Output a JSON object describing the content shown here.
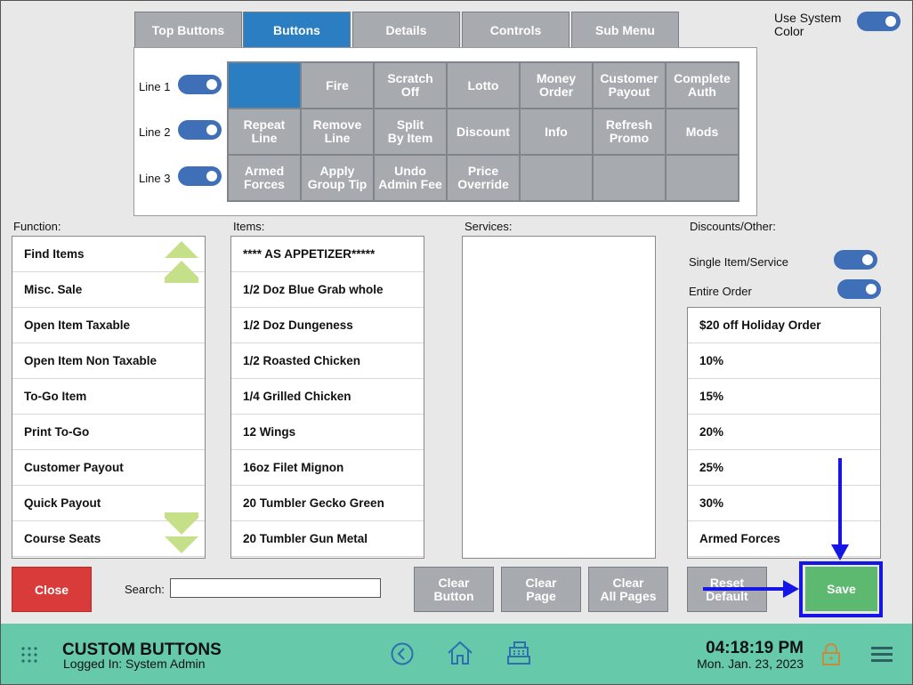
{
  "tabs": [
    {
      "label": "Top Buttons",
      "active": false
    },
    {
      "label": "Buttons",
      "active": true
    },
    {
      "label": "Details",
      "active": false
    },
    {
      "label": "Controls",
      "active": false
    },
    {
      "label": "Sub Menu",
      "active": false
    }
  ],
  "system_color": {
    "label": "Use System Color",
    "on": true
  },
  "lines": [
    {
      "label": "Line 1",
      "on": true
    },
    {
      "label": "Line 2",
      "on": true
    },
    {
      "label": "Line 3",
      "on": true
    }
  ],
  "grid_buttons": [
    {
      "label": "",
      "selected": true
    },
    {
      "label": "Fire"
    },
    {
      "label": "Scratch\nOff"
    },
    {
      "label": "Lotto"
    },
    {
      "label": "Money\nOrder"
    },
    {
      "label": "Customer\nPayout"
    },
    {
      "label": "Complete\nAuth"
    },
    {
      "label": "Repeat\nLine"
    },
    {
      "label": "Remove\nLine"
    },
    {
      "label": "Split\nBy Item"
    },
    {
      "label": "Discount"
    },
    {
      "label": "Info"
    },
    {
      "label": "Refresh\nPromo"
    },
    {
      "label": "Mods"
    },
    {
      "label": "Armed\nForces"
    },
    {
      "label": "Apply\nGroup Tip"
    },
    {
      "label": "Undo\nAdmin Fee"
    },
    {
      "label": "Price\nOverride"
    },
    {
      "label": ""
    },
    {
      "label": ""
    },
    {
      "label": ""
    }
  ],
  "function": {
    "label": "Function:",
    "items": [
      "Find Items",
      "Misc. Sale",
      "Open Item Taxable",
      "Open Item Non Taxable",
      "To-Go Item",
      "Print To-Go",
      "Customer Payout",
      "Quick Payout",
      "Course Seats"
    ]
  },
  "items": {
    "label": "Items:",
    "items": [
      "**** AS APPETIZER*****",
      "1/2 Doz Blue Grab whole",
      "1/2 Doz Dungeness",
      "1/2 Roasted Chicken",
      "1/4 Grilled Chicken",
      "12 Wings",
      "16oz Filet Mignon",
      "20 Tumbler Gecko Green",
      "20 Tumbler Gun Metal"
    ]
  },
  "services": {
    "label": "Services:",
    "items": []
  },
  "discounts": {
    "label": "Discounts/Other:",
    "single_item_label": "Single Item/Service",
    "entire_order_label": "Entire Order",
    "items": [
      "$20 off Holiday Order",
      "10%",
      "15%",
      "20%",
      "25%",
      "30%",
      "Armed Forces"
    ]
  },
  "actions": {
    "close": "Close",
    "search_label": "Search:",
    "search_value": "",
    "clear_button": "Clear\nButton",
    "clear_page": "Clear\nPage",
    "clear_all_pages": "Clear\nAll Pages",
    "reset_default": "Reset\nDefault",
    "save": "Save"
  },
  "footer": {
    "title": "CUSTOM BUTTONS",
    "logged_in": "Logged In:  System Admin",
    "time": "04:18:19 PM",
    "date": "Mon. Jan. 23, 2023"
  },
  "colors": {
    "accent_blue": "#2b7ec1",
    "toggle_blue": "#3f6fb6",
    "footer_green": "#66c9a9",
    "save_green": "#5db870",
    "close_red": "#d93a3a",
    "highlight_blue": "#1515e6"
  },
  "icons": [
    "apps-grid-icon",
    "back-circle-icon",
    "home-icon",
    "register-icon",
    "lock-icon",
    "hamburger-menu-icon"
  ]
}
